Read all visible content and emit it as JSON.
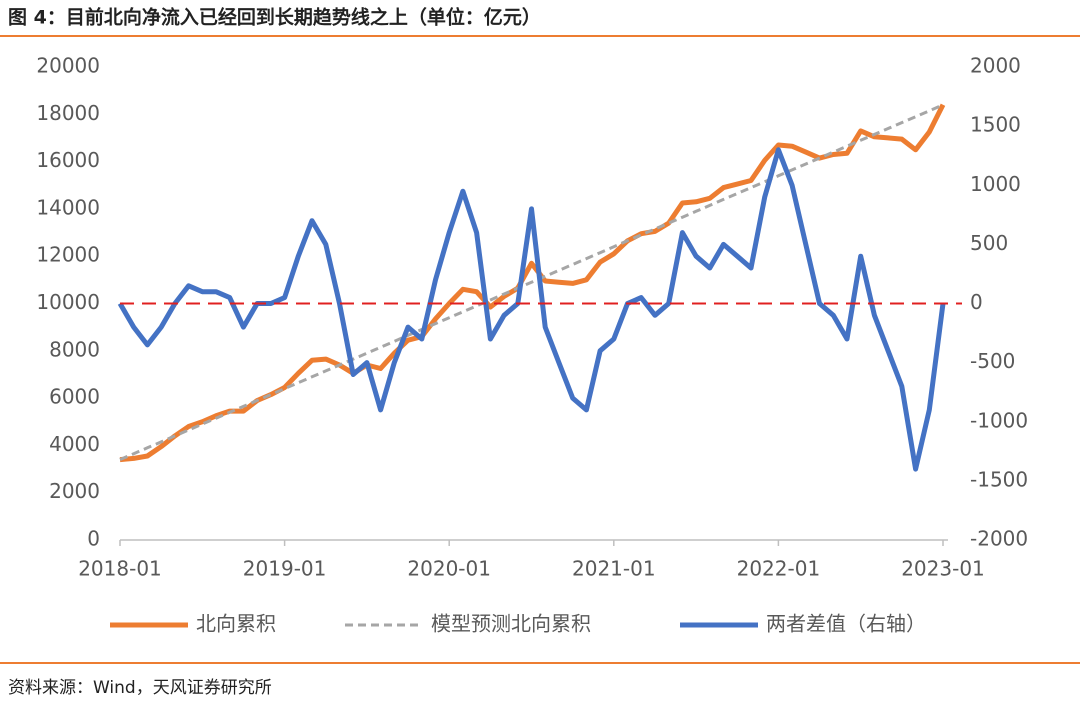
{
  "chart_data": {
    "type": "line",
    "title": "图 4：目前北向净流入已经回到长期趋势线之上（单位：亿元）",
    "source": "资料来源：Wind，天风证券研究所",
    "x": [
      "2018-01",
      "2018-02",
      "2018-03",
      "2018-04",
      "2018-05",
      "2018-06",
      "2018-07",
      "2018-08",
      "2018-09",
      "2018-10",
      "2018-11",
      "2018-12",
      "2019-01",
      "2019-02",
      "2019-03",
      "2019-04",
      "2019-05",
      "2019-06",
      "2019-07",
      "2019-08",
      "2019-09",
      "2019-10",
      "2019-11",
      "2019-12",
      "2020-01",
      "2020-02",
      "2020-03",
      "2020-04",
      "2020-05",
      "2020-06",
      "2020-07",
      "2020-08",
      "2020-09",
      "2020-10",
      "2020-11",
      "2020-12",
      "2021-01",
      "2021-02",
      "2021-03",
      "2021-04",
      "2021-05",
      "2021-06",
      "2021-07",
      "2021-08",
      "2021-09",
      "2021-10",
      "2021-11",
      "2021-12",
      "2022-01",
      "2022-02",
      "2022-03",
      "2022-04",
      "2022-05",
      "2022-06",
      "2022-07",
      "2022-08",
      "2022-09",
      "2022-10",
      "2022-11",
      "2022-12",
      "2023-01"
    ],
    "xticks": [
      "2018-01",
      "2019-01",
      "2020-01",
      "2021-01",
      "2022-01",
      "2023-01"
    ],
    "ylim": [
      0,
      20000
    ],
    "yticks": [
      0,
      2000,
      4000,
      6000,
      8000,
      10000,
      12000,
      14000,
      16000,
      18000,
      20000
    ],
    "y2lim": [
      -2000,
      2000
    ],
    "y2ticks": [
      -2000,
      -1500,
      -1000,
      -500,
      0,
      500,
      1000,
      1500,
      2000
    ],
    "reference_line": {
      "axis": "y2",
      "value": 0,
      "color": "#e02020",
      "dash": true
    },
    "series": [
      {
        "name": "北向累积",
        "color": "#ed7d31",
        "dash": false,
        "width": 5,
        "values": [
          3400,
          3450,
          3550,
          3950,
          4400,
          4800,
          5000,
          5250,
          5450,
          5450,
          5900,
          6150,
          6450,
          7050,
          7600,
          7650,
          7400,
          7050,
          7400,
          7250,
          7900,
          8450,
          8600,
          9350,
          10000,
          10600,
          10500,
          9850,
          10300,
          10650,
          11700,
          10950,
          10900,
          10850,
          11000,
          11750,
          12100,
          12650,
          12950,
          13050,
          13400,
          14250,
          14300,
          14450,
          14900,
          15050,
          15200,
          16050,
          16700,
          16650,
          16400,
          16150,
          16300,
          16350,
          17300,
          17050,
          17000,
          16950,
          16500,
          17250,
          18400
        ]
      },
      {
        "name": "模型预测北向累积",
        "color": "#a6a6a6",
        "dash": true,
        "width": 3,
        "values": [
          3400,
          3650,
          3900,
          4150,
          4400,
          4650,
          4900,
          5150,
          5400,
          5650,
          5900,
          6150,
          6400,
          6650,
          6900,
          7150,
          7400,
          7650,
          7900,
          8150,
          8400,
          8650,
          8900,
          9150,
          9400,
          9650,
          9900,
          10150,
          10400,
          10650,
          10900,
          11150,
          11400,
          11650,
          11900,
          12150,
          12400,
          12650,
          12900,
          13150,
          13400,
          13650,
          13900,
          14150,
          14400,
          14650,
          14900,
          15150,
          15400,
          15650,
          15900,
          16150,
          16400,
          16650,
          16900,
          17150,
          17400,
          17650,
          17900,
          18150,
          18400
        ]
      },
      {
        "name": "两者差值（右轴）",
        "color": "#4472c4",
        "dash": false,
        "width": 5,
        "axis": "y2",
        "values": [
          0,
          -200,
          -350,
          -200,
          0,
          150,
          100,
          100,
          50,
          -200,
          0,
          0,
          50,
          400,
          700,
          500,
          0,
          -600,
          -500,
          -900,
          -500,
          -200,
          -300,
          200,
          600,
          950,
          600,
          -300,
          -100,
          0,
          800,
          -200,
          -500,
          -800,
          -900,
          -400,
          -300,
          0,
          50,
          -100,
          0,
          600,
          400,
          300,
          500,
          400,
          300,
          900,
          1300,
          1000,
          500,
          0,
          -100,
          -300,
          400,
          -100,
          -400,
          -700,
          -1400,
          -900,
          0
        ]
      }
    ]
  }
}
